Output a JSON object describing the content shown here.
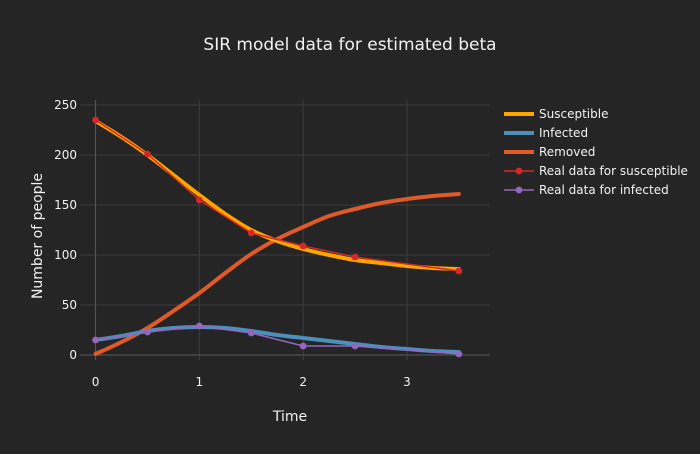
{
  "chart_data": {
    "type": "line",
    "title": "SIR model data for estimated beta",
    "xlabel": "Time",
    "ylabel": "Number of people",
    "xlim": [
      -0.15,
      3.8
    ],
    "ylim": [
      -5,
      255
    ],
    "xticks": [
      0,
      1,
      2,
      3
    ],
    "yticks": [
      0,
      50,
      100,
      150,
      200,
      250
    ],
    "grid": true,
    "legend_position": "top-right",
    "series": [
      {
        "name": "Susceptible",
        "kind": "model",
        "color": "#ffa500",
        "x": [
          0,
          0.25,
          0.5,
          0.75,
          1,
          1.25,
          1.5,
          1.75,
          2,
          2.25,
          2.5,
          2.75,
          3,
          3.25,
          3.5
        ],
        "y": [
          234,
          218,
          200,
          180,
          160,
          141,
          125,
          114,
          106,
          100,
          95,
          92,
          89,
          87,
          86
        ]
      },
      {
        "name": "Infected",
        "kind": "model",
        "color": "#4c8fbd",
        "x": [
          0,
          0.25,
          0.5,
          0.75,
          1,
          1.25,
          1.5,
          1.75,
          2,
          2.25,
          2.5,
          2.75,
          3,
          3.25,
          3.5
        ],
        "y": [
          15,
          19,
          24,
          27,
          28,
          27,
          24,
          20,
          17,
          14,
          11,
          8,
          6,
          4,
          3
        ]
      },
      {
        "name": "Removed",
        "kind": "model",
        "color": "#e05a28",
        "x": [
          0,
          0.25,
          0.5,
          0.75,
          1,
          1.25,
          1.5,
          1.75,
          2,
          2.25,
          2.5,
          2.75,
          3,
          3.25,
          3.5
        ],
        "y": [
          1,
          13,
          27,
          44,
          62,
          82,
          101,
          116,
          128,
          139,
          146,
          152,
          156,
          159,
          161
        ]
      },
      {
        "name": "Real data for susceptible",
        "kind": "observed",
        "color": "#d62728",
        "x": [
          0,
          0.5,
          1,
          1.5,
          2,
          2.5,
          3.5
        ],
        "y": [
          235,
          201,
          155,
          122,
          109,
          98,
          84
        ]
      },
      {
        "name": "Real data for infected",
        "kind": "observed",
        "color": "#9467bd",
        "x": [
          0,
          0.5,
          1,
          1.5,
          2,
          2.5,
          3.5
        ],
        "y": [
          15,
          23,
          29,
          22,
          9,
          9,
          1
        ]
      }
    ]
  }
}
